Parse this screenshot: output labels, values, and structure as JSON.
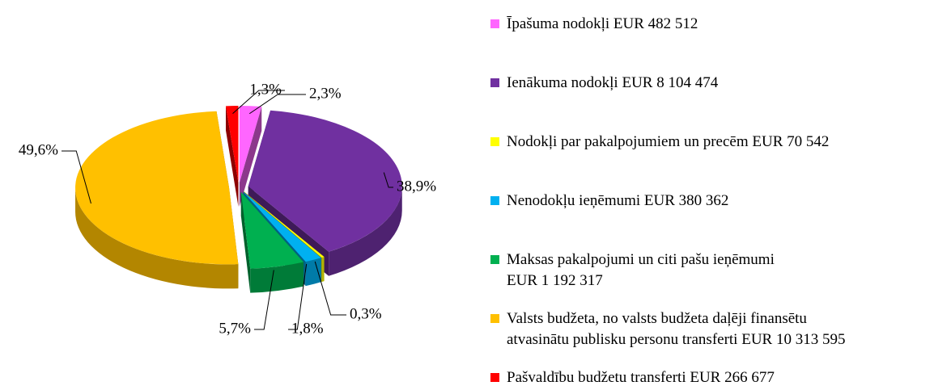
{
  "chart_data": {
    "type": "pie",
    "series": [
      {
        "name": "Īpašuma nodokļi EUR 482 512",
        "color": "#ff66ff",
        "value": 2.3,
        "value_label": "2,3%"
      },
      {
        "name": "Ienākuma nodokļi EUR 8 104 474",
        "color": "#7030a0",
        "value": 38.9,
        "value_label": "38,9%"
      },
      {
        "name": "Nodokļi par pakalpojumiem un precēm EUR 70 542",
        "color": "#ffff00",
        "value": 0.3,
        "value_label": "0,3%"
      },
      {
        "name": "Nenodokļu ieņēmumi EUR 380 362",
        "color": "#00b0f0",
        "value": 1.8,
        "value_label": "1,8%"
      },
      {
        "name": "Maksas pakalpojumi un citi pašu ieņēmumi\nEUR 1 192 317",
        "color": "#00b050",
        "value": 5.7,
        "value_label": "5,7%"
      },
      {
        "name": "Valsts budžeta, no valsts budžeta daļēji finansētu\natvasinātu publisku personu transferti EUR 10 313 595",
        "color": "#ffc000",
        "value": 49.6,
        "value_label": "49,6%"
      },
      {
        "name": "Pašvaldību budžetu transferti EUR 266 677",
        "color": "#ff0000",
        "value": 1.3,
        "value_label": "1,3%"
      }
    ]
  }
}
